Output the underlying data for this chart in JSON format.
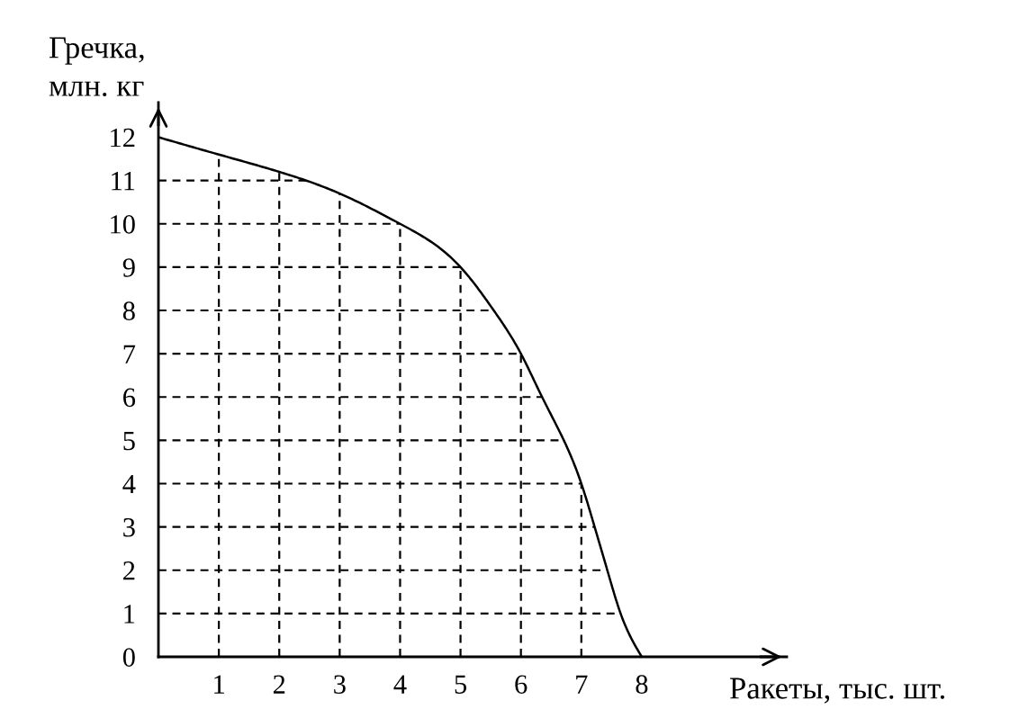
{
  "chart_data": {
    "type": "line",
    "xlabel": "Ракеты, тыс. шт.",
    "ylabel": "Гречка,\nмлн. кг",
    "series": [
      {
        "color": "#000000",
        "x": [
          0,
          1,
          2,
          3,
          4,
          5,
          5.55,
          6,
          6.35,
          6.71,
          7,
          7.22,
          7.43,
          7.65,
          8
        ],
        "values": [
          12,
          11.6,
          11.2,
          10.7,
          10,
          9,
          8,
          7,
          6,
          5,
          4,
          3,
          2,
          1,
          0
        ]
      }
    ],
    "xlim": [
      0,
      10.4
    ],
    "ylim": [
      0,
      12.8
    ],
    "xticks": [
      1,
      2,
      3,
      4,
      5,
      6,
      7,
      8
    ],
    "yticks": [
      0,
      1,
      2,
      3,
      4,
      5,
      6,
      7,
      8,
      9,
      10,
      11,
      12
    ],
    "grid": true,
    "line_style": "solid"
  }
}
